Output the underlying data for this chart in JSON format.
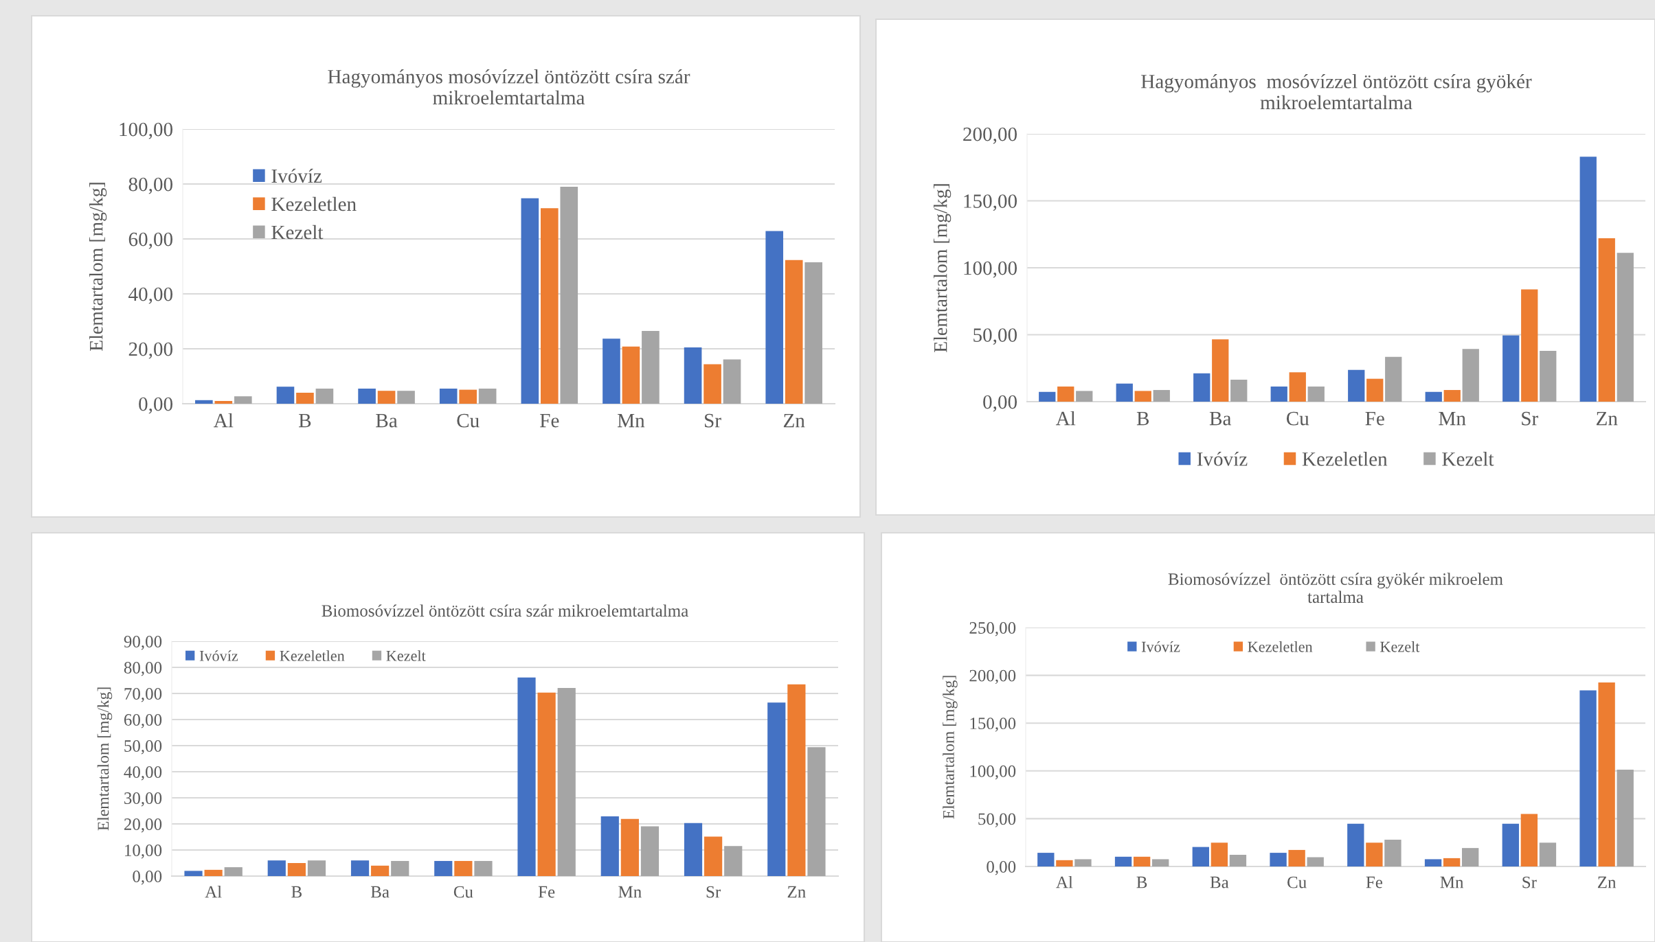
{
  "chart_data": [
    {
      "type": "bar",
      "title": "Hagyományos mosóvízzel öntözött csíra szár\nmikroelemtartalma",
      "ylabel": "Elemtartalom [mg/kg]",
      "categories": [
        "Al",
        "B",
        "Ba",
        "Cu",
        "Fe",
        "Mn",
        "Sr",
        "Zn"
      ],
      "series": [
        {
          "name": "Ivóvíz",
          "color": "#4472c4",
          "values": [
            1.3,
            6.2,
            5.5,
            5.5,
            74.8,
            23.7,
            20.5,
            62.9
          ]
        },
        {
          "name": "Kezeletlen",
          "color": "#ed7d31",
          "values": [
            1.0,
            4.0,
            4.7,
            5.1,
            71.2,
            20.8,
            14.4,
            52.3
          ]
        },
        {
          "name": "Kezelt",
          "color": "#a5a5a5",
          "values": [
            2.7,
            5.5,
            4.7,
            5.5,
            79.0,
            26.5,
            16.1,
            51.5
          ]
        }
      ],
      "ylim": [
        0,
        100
      ],
      "yticks": [
        {
          "value": 0,
          "label": "0,00"
        },
        {
          "value": 20,
          "label": "20,00"
        },
        {
          "value": 40,
          "label": "40,00"
        },
        {
          "value": 60,
          "label": "60,00"
        },
        {
          "value": 80,
          "label": "80,00"
        },
        {
          "value": 100,
          "label": "100,00"
        }
      ],
      "grid": "y",
      "legend": "left"
    },
    {
      "type": "bar",
      "title": "Hagyományos  mosóvízzel öntözött csíra gyökér\nmikroelemtartalma",
      "ylabel": "Elemtartalom [mg/kg]",
      "categories": [
        "Al",
        "B",
        "Ba",
        "Cu",
        "Fe",
        "Mn",
        "Sr",
        "Zn"
      ],
      "series": [
        {
          "name": "Ivóvíz",
          "color": "#4472c4",
          "values": [
            7.3,
            13.5,
            21.1,
            11.3,
            23.7,
            7.3,
            49.5,
            182.9
          ]
        },
        {
          "name": "Kezeletlen",
          "color": "#ed7d31",
          "values": [
            11.3,
            8.0,
            46.6,
            21.9,
            17.1,
            8.7,
            83.8,
            122.0
          ]
        },
        {
          "name": "Kezelt",
          "color": "#a5a5a5",
          "values": [
            8.0,
            8.7,
            16.4,
            11.3,
            33.5,
            39.3,
            37.9,
            111.1
          ]
        }
      ],
      "ylim": [
        0,
        200
      ],
      "yticks": [
        {
          "value": 0,
          "label": "0,00"
        },
        {
          "value": 50,
          "label": "50,00"
        },
        {
          "value": 100,
          "label": "100,00"
        },
        {
          "value": 150,
          "label": "150,00"
        },
        {
          "value": 200,
          "label": "200,00"
        }
      ],
      "grid": "y",
      "legend": "bottom"
    },
    {
      "type": "bar",
      "title": "Biomosóvízzel öntözött csíra szár mikroelemtartalma",
      "ylabel": "Elemtartalom [mg/kg]",
      "categories": [
        "Al",
        "B",
        "Ba",
        "Cu",
        "Fe",
        "Mn",
        "Sr",
        "Zn"
      ],
      "series": [
        {
          "name": "Ivóvíz",
          "color": "#4472c4",
          "values": [
            2.0,
            6.0,
            6.0,
            5.8,
            76.1,
            22.9,
            20.3,
            66.5
          ]
        },
        {
          "name": "Kezeletlen",
          "color": "#ed7d31",
          "values": [
            2.4,
            5.0,
            4.0,
            5.8,
            70.3,
            21.9,
            15.1,
            73.5
          ]
        },
        {
          "name": "Kezelt",
          "color": "#a5a5a5",
          "values": [
            3.4,
            6.0,
            5.8,
            5.8,
            72.1,
            19.1,
            11.5,
            49.4
          ]
        }
      ],
      "ylim": [
        0,
        90
      ],
      "yticks": [
        {
          "value": 0,
          "label": "0,00"
        },
        {
          "value": 10,
          "label": "10,00"
        },
        {
          "value": 20,
          "label": "20,00"
        },
        {
          "value": 30,
          "label": "30,00"
        },
        {
          "value": 40,
          "label": "40,00"
        },
        {
          "value": 50,
          "label": "50,00"
        },
        {
          "value": 60,
          "label": "60,00"
        },
        {
          "value": 70,
          "label": "70,00"
        },
        {
          "value": 80,
          "label": "80,00"
        },
        {
          "value": 90,
          "label": "90,00"
        }
      ],
      "grid": "y",
      "legend": "top left"
    },
    {
      "type": "bar",
      "title": "Biomosóvízzel  öntözött csíra gyökér mikroelem\ntartalma",
      "ylabel": "Elemtartalom [mg/kg]",
      "categories": [
        "Al",
        "B",
        "Ba",
        "Cu",
        "Fe",
        "Mn",
        "Sr",
        "Zn"
      ],
      "series": [
        {
          "name": "Ivóvíz",
          "color": "#4472c4",
          "values": [
            14.3,
            10.2,
            20.4,
            14.3,
            44.8,
            7.6,
            44.8,
            184.3
          ]
        },
        {
          "name": "Kezeletlen",
          "color": "#ed7d31",
          "values": [
            6.6,
            10.2,
            24.9,
            17.3,
            24.9,
            8.7,
            55.0,
            192.5
          ]
        },
        {
          "name": "Kezelt",
          "color": "#a5a5a5",
          "values": [
            7.6,
            7.6,
            12.2,
            9.7,
            28.0,
            19.3,
            24.9,
            101.3
          ]
        }
      ],
      "ylim": [
        0,
        250
      ],
      "yticks": [
        {
          "value": 0,
          "label": "0,00"
        },
        {
          "value": 50,
          "label": "50,00"
        },
        {
          "value": 100,
          "label": "100,00"
        },
        {
          "value": 150,
          "label": "150,00"
        },
        {
          "value": 200,
          "label": "200,00"
        },
        {
          "value": 250,
          "label": "250,00"
        }
      ],
      "grid": "y",
      "legend": "top"
    }
  ]
}
